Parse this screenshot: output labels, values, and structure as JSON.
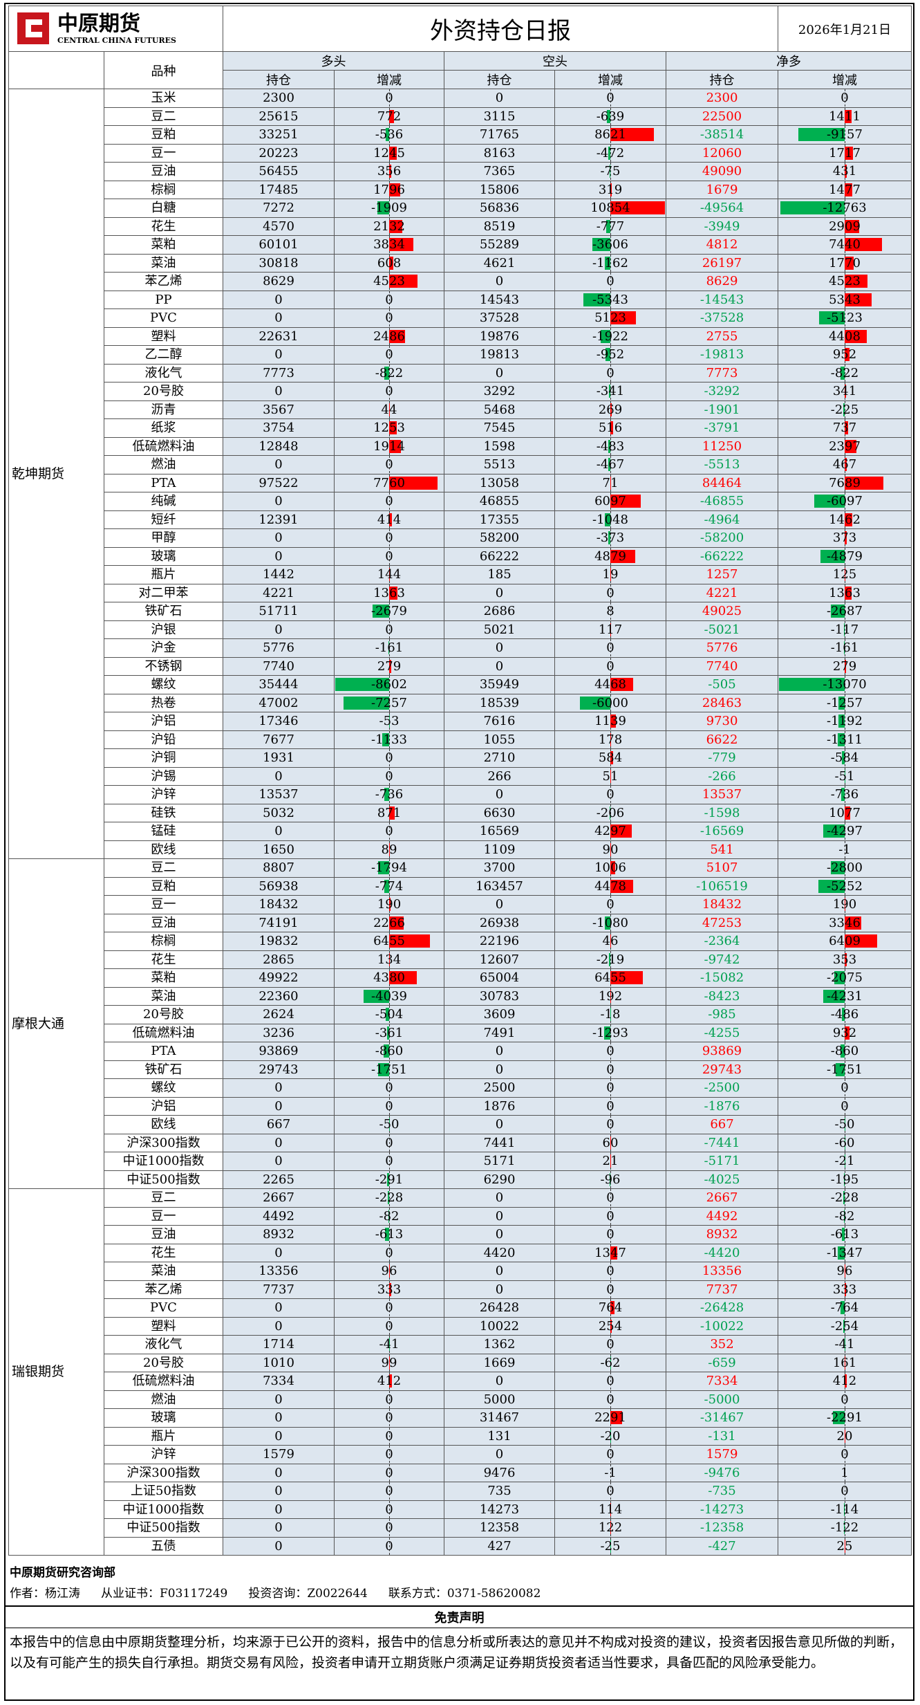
{
  "header": {
    "logo_cn": "中原期货",
    "logo_en": "CENTRAL CHINA FUTURES",
    "title": "外资持仓日报",
    "date": "2026年1月21日"
  },
  "columns": {
    "variety": "品种",
    "long": "多头",
    "short": "空头",
    "net": "净多",
    "position": "持仓",
    "change": "增减"
  },
  "groups": [
    {
      "name": "乾坤期货",
      "rows": [
        [
          "玉米",
          2300,
          0,
          0,
          0,
          2300,
          0
        ],
        [
          "豆二",
          25615,
          772,
          3115,
          -639,
          22500,
          1411
        ],
        [
          "豆粕",
          33251,
          -536,
          71765,
          8621,
          -38514,
          -9157
        ],
        [
          "豆一",
          20223,
          1245,
          8163,
          -472,
          12060,
          1717
        ],
        [
          "豆油",
          56455,
          356,
          7365,
          -75,
          49090,
          431
        ],
        [
          "棕榈",
          17485,
          1796,
          15806,
          319,
          1679,
          1477
        ],
        [
          "白糖",
          7272,
          -1909,
          56836,
          10854,
          -49564,
          -12763
        ],
        [
          "花生",
          4570,
          2132,
          8519,
          -777,
          -3949,
          2909
        ],
        [
          "菜粕",
          60101,
          3834,
          55289,
          -3606,
          4812,
          7440
        ],
        [
          "菜油",
          30818,
          608,
          4621,
          -1162,
          26197,
          1770
        ],
        [
          "苯乙烯",
          8629,
          4523,
          0,
          0,
          8629,
          4523
        ],
        [
          "PP",
          0,
          0,
          14543,
          -5343,
          -14543,
          5343
        ],
        [
          "PVC",
          0,
          0,
          37528,
          5123,
          -37528,
          -5123
        ],
        [
          "塑料",
          22631,
          2486,
          19876,
          -1922,
          2755,
          4408
        ],
        [
          "乙二醇",
          0,
          0,
          19813,
          -952,
          -19813,
          952
        ],
        [
          "液化气",
          7773,
          -822,
          0,
          0,
          7773,
          -822
        ],
        [
          "20号胶",
          0,
          0,
          3292,
          -341,
          -3292,
          341
        ],
        [
          "沥青",
          3567,
          44,
          5468,
          269,
          -1901,
          -225
        ],
        [
          "纸浆",
          3754,
          1253,
          7545,
          516,
          -3791,
          737
        ],
        [
          "低硫燃料油",
          12848,
          1914,
          1598,
          -483,
          11250,
          2397
        ],
        [
          "燃油",
          0,
          0,
          5513,
          -467,
          -5513,
          467
        ],
        [
          "PTA",
          97522,
          7760,
          13058,
          71,
          84464,
          7689
        ],
        [
          "纯碱",
          0,
          0,
          46855,
          6097,
          -46855,
          -6097
        ],
        [
          "短纤",
          12391,
          414,
          17355,
          -1048,
          -4964,
          1462
        ],
        [
          "甲醇",
          0,
          0,
          58200,
          -373,
          -58200,
          373
        ],
        [
          "玻璃",
          0,
          0,
          66222,
          4879,
          -66222,
          -4879
        ],
        [
          "瓶片",
          1442,
          144,
          185,
          19,
          1257,
          125
        ],
        [
          "对二甲苯",
          4221,
          1363,
          0,
          0,
          4221,
          1363
        ],
        [
          "铁矿石",
          51711,
          -2679,
          2686,
          8,
          49025,
          -2687
        ],
        [
          "沪银",
          0,
          0,
          5021,
          117,
          -5021,
          -117
        ],
        [
          "沪金",
          5776,
          -161,
          0,
          0,
          5776,
          -161
        ],
        [
          "不锈钢",
          7740,
          279,
          0,
          0,
          7740,
          279
        ],
        [
          "螺纹",
          35444,
          -8602,
          35949,
          4468,
          -505,
          -13070
        ],
        [
          "热卷",
          47002,
          -7257,
          18539,
          -6000,
          28463,
          -1257
        ],
        [
          "沪铝",
          17346,
          -53,
          7616,
          1139,
          9730,
          -1192
        ],
        [
          "沪铅",
          7677,
          -1133,
          1055,
          178,
          6622,
          -1311
        ],
        [
          "沪铜",
          1931,
          0,
          2710,
          584,
          -779,
          -584
        ],
        [
          "沪锡",
          0,
          0,
          266,
          51,
          -266,
          -51
        ],
        [
          "沪锌",
          13537,
          -736,
          0,
          0,
          13537,
          -736
        ],
        [
          "硅铁",
          5032,
          871,
          6630,
          -206,
          -1598,
          1077
        ],
        [
          "锰硅",
          0,
          0,
          16569,
          4297,
          -16569,
          -4297
        ],
        [
          "欧线",
          1650,
          89,
          1109,
          90,
          541,
          -1
        ]
      ]
    },
    {
      "name": "摩根大通",
      "rows": [
        [
          "豆二",
          8807,
          -1794,
          3700,
          1006,
          5107,
          -2800
        ],
        [
          "豆粕",
          56938,
          -774,
          163457,
          4478,
          -106519,
          -5252
        ],
        [
          "豆一",
          18432,
          190,
          0,
          0,
          18432,
          190
        ],
        [
          "豆油",
          74191,
          2266,
          26938,
          -1080,
          47253,
          3346
        ],
        [
          "棕榈",
          19832,
          6455,
          22196,
          46,
          -2364,
          6409
        ],
        [
          "花生",
          2865,
          134,
          12607,
          -219,
          -9742,
          353
        ],
        [
          "菜粕",
          49922,
          4380,
          65004,
          6455,
          -15082,
          -2075
        ],
        [
          "菜油",
          22360,
          -4039,
          30783,
          192,
          -8423,
          -4231
        ],
        [
          "20号胶",
          2624,
          -504,
          3609,
          -18,
          -985,
          -486
        ],
        [
          "低硫燃料油",
          3236,
          -361,
          7491,
          -1293,
          -4255,
          932
        ],
        [
          "PTA",
          93869,
          -860,
          0,
          0,
          93869,
          -860
        ],
        [
          "铁矿石",
          29743,
          -1751,
          0,
          0,
          29743,
          -1751
        ],
        [
          "螺纹",
          0,
          0,
          2500,
          0,
          -2500,
          0
        ],
        [
          "沪铝",
          0,
          0,
          1876,
          0,
          -1876,
          0
        ],
        [
          "欧线",
          667,
          -50,
          0,
          0,
          667,
          -50
        ],
        [
          "沪深300指数",
          0,
          0,
          7441,
          60,
          -7441,
          -60
        ],
        [
          "中证1000指数",
          0,
          0,
          5171,
          21,
          -5171,
          -21
        ],
        [
          "中证500指数",
          2265,
          -291,
          6290,
          -96,
          -4025,
          -195
        ]
      ]
    },
    {
      "name": "瑞银期货",
      "rows": [
        [
          "豆二",
          2667,
          -228,
          0,
          0,
          2667,
          -228
        ],
        [
          "豆一",
          4492,
          -82,
          0,
          0,
          4492,
          -82
        ],
        [
          "豆油",
          8932,
          -613,
          0,
          0,
          8932,
          -613
        ],
        [
          "花生",
          0,
          0,
          4420,
          1347,
          -4420,
          -1347
        ],
        [
          "菜油",
          13356,
          96,
          0,
          0,
          13356,
          96
        ],
        [
          "苯乙烯",
          7737,
          333,
          0,
          0,
          7737,
          333
        ],
        [
          "PVC",
          0,
          0,
          26428,
          764,
          -26428,
          -764
        ],
        [
          "塑料",
          0,
          0,
          10022,
          254,
          -10022,
          -254
        ],
        [
          "液化气",
          1714,
          -41,
          1362,
          0,
          352,
          -41
        ],
        [
          "20号胶",
          1010,
          99,
          1669,
          -62,
          -659,
          161
        ],
        [
          "低硫燃料油",
          7334,
          412,
          0,
          0,
          7334,
          412
        ],
        [
          "燃油",
          0,
          0,
          5000,
          0,
          -5000,
          0
        ],
        [
          "玻璃",
          0,
          0,
          31467,
          2291,
          -31467,
          -2291
        ],
        [
          "瓶片",
          0,
          0,
          131,
          -20,
          -131,
          20
        ],
        [
          "沪锌",
          1579,
          0,
          0,
          0,
          1579,
          0
        ],
        [
          "沪深300指数",
          0,
          0,
          9476,
          -1,
          -9476,
          1
        ],
        [
          "上证50指数",
          0,
          0,
          735,
          0,
          -735,
          0
        ],
        [
          "中证1000指数",
          0,
          0,
          14273,
          114,
          -14273,
          -114
        ],
        [
          "中证500指数",
          0,
          0,
          12358,
          122,
          -12358,
          -122
        ],
        [
          "五债",
          0,
          0,
          427,
          -25,
          -427,
          25
        ]
      ]
    }
  ],
  "footer": {
    "dept": "中原期货研究咨询部",
    "author": "作者：杨江涛",
    "cert": "从业证书：F03117249",
    "advisory": "投资咨询：Z0022644",
    "contact": "联系方式：0371-58620082",
    "disclaimer_title": "免责声明",
    "disclaimer": "本报告中的信息由中原期货整理分析，均来源于已公开的资料，报告中的信息分析或所表达的意见并不构成对投资的建议，投资者因报告意见所做的判断，以及有可能产生的损失自行承担。期货交易有风险，投资者申请开立期货账户须满足证券期货投资者适当性要求，具备匹配的风险承受能力。"
  }
}
